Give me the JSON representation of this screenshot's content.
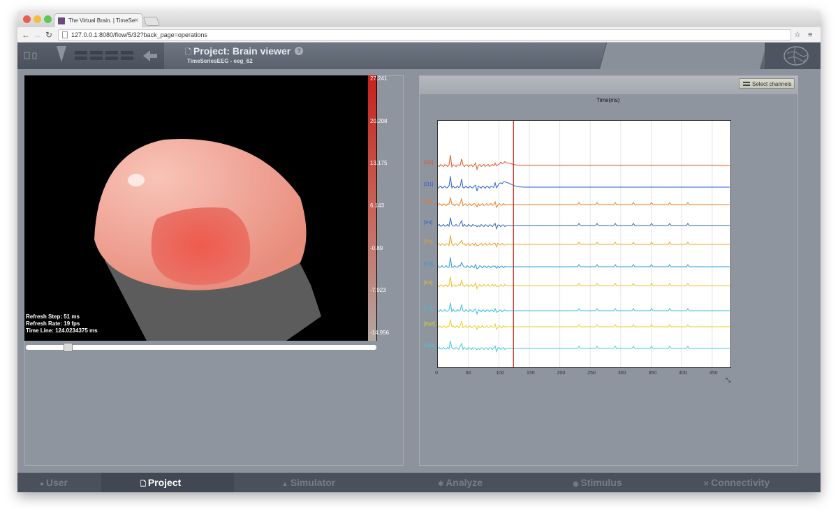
{
  "browser": {
    "tab_title": "The Virtual Brain. | TimeSe",
    "url": "127.0.0.1:8080/flow/5/32?back_page=operations"
  },
  "header": {
    "title": "Project: Brain viewer",
    "help_label": "?",
    "subtitle": "TimeSeriesEEG - eeg_62"
  },
  "viewer": {
    "legend_labels": [
      "27.241",
      "20.208",
      "13.175",
      "6.143",
      "-0.89",
      "-7.923",
      "-14.956"
    ],
    "stats": [
      "Refresh Step: 51 ms",
      "Refresh Rate: 19 fps",
      "Time Line: 124.0234375 ms"
    ],
    "timeline_position": 0.13
  },
  "eeg": {
    "select_channels_label": "Select channels",
    "plot_title": "Time(ms)",
    "x_ticks": [
      "0",
      "50",
      "100",
      "150",
      "200",
      "250",
      "300",
      "350",
      "400",
      "450"
    ],
    "channels": [
      "[O2]",
      "[O1]",
      "[P8]",
      "[P4]",
      "[Pz]",
      "[C3]",
      "[F4]",
      "[F3]",
      "[Fp2]",
      "[Fp1]"
    ],
    "channel_colors": [
      "#e8501e",
      "#2a5ad8",
      "#f07818",
      "#2a62c8",
      "#f0a020",
      "#2a9ad8",
      "#f0c020",
      "#30c0e0",
      "#e8d020",
      "#40c8e8"
    ],
    "current_time": 124.0234375,
    "chart_data": {
      "type": "line",
      "x_axis_label": "Time(ms)",
      "xlim": [
        0,
        480
      ],
      "current_time_marker": 124.0234375
    }
  },
  "bottom_nav": [
    {
      "label": "User",
      "icon": "user-icon"
    },
    {
      "label": "Project",
      "icon": "document-icon"
    },
    {
      "label": "Simulator",
      "icon": "simulator-icon"
    },
    {
      "label": "Analyze",
      "icon": "gear-icon"
    },
    {
      "label": "Stimulus",
      "icon": "pin-icon"
    },
    {
      "label": "Connectivity",
      "icon": "connectivity-icon"
    }
  ]
}
